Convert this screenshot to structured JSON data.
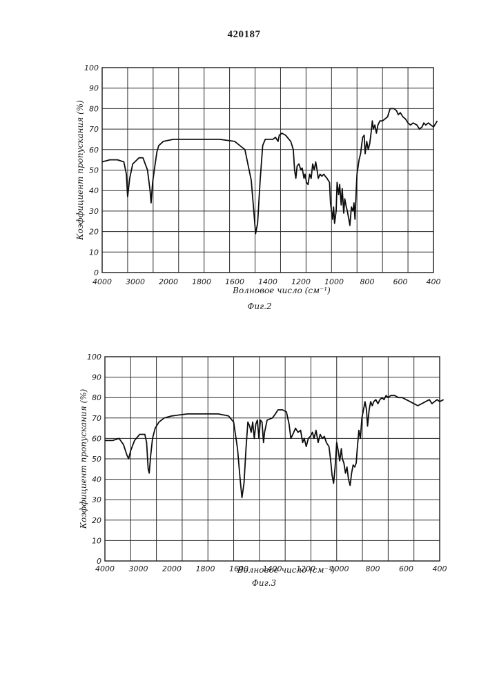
{
  "page_number": "420187",
  "chart_data": [
    {
      "type": "line",
      "caption": "Фиг.2",
      "xlabel": "Волновое число (см⁻¹)",
      "ylabel": "Коэффициент пропускания (%)",
      "ylim": [
        0,
        100
      ],
      "y_ticks": [
        "0",
        "10",
        "20",
        "30",
        "40",
        "50",
        "60",
        "70",
        "80",
        "90",
        "100"
      ],
      "x_ticks": [
        "4000",
        "3000",
        "2000",
        "1800",
        "1600",
        "1400",
        "1200",
        "1000",
        "800",
        "600",
        "400"
      ],
      "grid": true,
      "series": [
        {
          "points": [
            [
              0,
              54
            ],
            [
              0.3,
              55
            ],
            [
              0.6,
              55
            ],
            [
              0.85,
              54
            ],
            [
              0.95,
              48
            ],
            [
              1.0,
              37
            ],
            [
              1.08,
              46
            ],
            [
              1.2,
              53
            ],
            [
              1.45,
              56
            ],
            [
              1.6,
              56
            ],
            [
              1.78,
              50
            ],
            [
              1.88,
              40
            ],
            [
              1.92,
              34
            ],
            [
              1.98,
              44
            ],
            [
              2.08,
              53
            ],
            [
              2.15,
              59
            ],
            [
              2.22,
              62
            ],
            [
              2.4,
              64
            ],
            [
              2.8,
              65
            ],
            [
              3.5,
              65
            ],
            [
              4.6,
              65
            ],
            [
              5.2,
              64
            ],
            [
              5.6,
              60
            ],
            [
              5.85,
              45
            ],
            [
              5.95,
              30
            ],
            [
              6.02,
              19
            ],
            [
              6.1,
              24
            ],
            [
              6.2,
              45
            ],
            [
              6.3,
              62
            ],
            [
              6.4,
              65
            ],
            [
              6.7,
              65
            ],
            [
              6.8,
              66
            ],
            [
              6.9,
              64
            ],
            [
              6.95,
              67
            ],
            [
              7.05,
              68
            ],
            [
              7.2,
              67
            ],
            [
              7.4,
              64
            ],
            [
              7.5,
              60
            ],
            [
              7.55,
              50
            ],
            [
              7.6,
              46
            ],
            [
              7.65,
              52
            ],
            [
              7.72,
              53
            ],
            [
              7.8,
              50
            ],
            [
              7.85,
              51
            ],
            [
              7.92,
              46
            ],
            [
              7.96,
              48
            ],
            [
              8.02,
              44
            ],
            [
              8.08,
              43
            ],
            [
              8.14,
              48
            ],
            [
              8.2,
              46
            ],
            [
              8.26,
              53
            ],
            [
              8.32,
              50
            ],
            [
              8.38,
              54
            ],
            [
              8.42,
              51
            ],
            [
              8.48,
              46
            ],
            [
              8.55,
              48
            ],
            [
              8.62,
              47
            ],
            [
              8.7,
              48
            ],
            [
              8.75,
              47
            ],
            [
              8.82,
              46
            ],
            [
              8.92,
              44
            ],
            [
              8.96,
              34
            ],
            [
              9.0,
              30
            ],
            [
              9.04,
              26
            ],
            [
              9.08,
              32
            ],
            [
              9.12,
              24
            ],
            [
              9.18,
              30
            ],
            [
              9.22,
              44
            ],
            [
              9.28,
              38
            ],
            [
              9.32,
              43
            ],
            [
              9.38,
              33
            ],
            [
              9.42,
              41
            ],
            [
              9.48,
              29
            ],
            [
              9.52,
              36
            ],
            [
              9.58,
              32
            ],
            [
              9.62,
              30
            ],
            [
              9.68,
              26
            ],
            [
              9.72,
              23
            ],
            [
              9.78,
              32
            ],
            [
              9.84,
              30
            ],
            [
              9.88,
              34
            ],
            [
              9.92,
              26
            ],
            [
              9.96,
              38
            ],
            [
              10.0,
              48
            ],
            [
              10.08,
              55
            ],
            [
              10.14,
              58
            ],
            [
              10.22,
              66
            ],
            [
              10.28,
              67
            ],
            [
              10.32,
              58
            ],
            [
              10.38,
              64
            ],
            [
              10.44,
              60
            ],
            [
              10.5,
              63
            ],
            [
              10.56,
              69
            ],
            [
              10.6,
              74
            ],
            [
              10.64,
              70
            ],
            [
              10.7,
              72
            ],
            [
              10.76,
              68
            ],
            [
              10.82,
              72
            ],
            [
              10.9,
              74
            ],
            [
              11.0,
              74
            ],
            [
              11.1,
              75
            ],
            [
              11.2,
              76
            ],
            [
              11.3,
              80
            ],
            [
              11.45,
              80
            ],
            [
              11.55,
              79
            ],
            [
              11.62,
              77
            ],
            [
              11.7,
              78
            ],
            [
              11.8,
              76
            ],
            [
              11.9,
              75
            ],
            [
              12.0,
              73
            ],
            [
              12.1,
              72
            ],
            [
              12.2,
              73
            ],
            [
              12.35,
              72
            ],
            [
              12.45,
              70
            ],
            [
              12.55,
              71
            ],
            [
              12.62,
              73
            ],
            [
              12.7,
              72
            ],
            [
              12.8,
              73
            ],
            [
              12.9,
              72
            ],
            [
              13.0,
              71
            ],
            [
              13.1,
              73
            ],
            [
              13.15,
              74
            ]
          ]
        }
      ]
    },
    {
      "type": "line",
      "caption": "Фиг.3",
      "xlabel": "Волновое число (см⁻¹)",
      "ylabel": "Коэффициент пропускания (%)",
      "ylim": [
        0,
        100
      ],
      "y_ticks": [
        "0",
        "10",
        "20",
        "30",
        "40",
        "50",
        "60",
        "70",
        "80",
        "90",
        "100"
      ],
      "x_ticks": [
        "4000",
        "3000",
        "2000",
        "1800",
        "1600",
        "1400",
        "1200",
        "1000",
        "800",
        "600",
        "400"
      ],
      "grid": true,
      "series": [
        {
          "points": [
            [
              0,
              59
            ],
            [
              0.3,
              59
            ],
            [
              0.55,
              60
            ],
            [
              0.72,
              57
            ],
            [
              0.85,
              52
            ],
            [
              0.92,
              50
            ],
            [
              1.0,
              54
            ],
            [
              1.15,
              59
            ],
            [
              1.35,
              62
            ],
            [
              1.55,
              62
            ],
            [
              1.62,
              58
            ],
            [
              1.68,
              45
            ],
            [
              1.72,
              43
            ],
            [
              1.78,
              52
            ],
            [
              1.85,
              60
            ],
            [
              1.95,
              65
            ],
            [
              2.1,
              68
            ],
            [
              2.3,
              70
            ],
            [
              2.6,
              71
            ],
            [
              3.2,
              72
            ],
            [
              4.4,
              72
            ],
            [
              4.8,
              71
            ],
            [
              5.0,
              68
            ],
            [
              5.15,
              55
            ],
            [
              5.25,
              40
            ],
            [
              5.32,
              31
            ],
            [
              5.4,
              38
            ],
            [
              5.48,
              55
            ],
            [
              5.55,
              68
            ],
            [
              5.62,
              66
            ],
            [
              5.68,
              63
            ],
            [
              5.74,
              68
            ],
            [
              5.8,
              60
            ],
            [
              5.86,
              67
            ],
            [
              5.92,
              69
            ],
            [
              5.98,
              60
            ],
            [
              6.04,
              69
            ],
            [
              6.1,
              68
            ],
            [
              6.16,
              58
            ],
            [
              6.2,
              63
            ],
            [
              6.3,
              69
            ],
            [
              6.5,
              70
            ],
            [
              6.62,
              72
            ],
            [
              6.72,
              74
            ],
            [
              6.9,
              74
            ],
            [
              7.05,
              73
            ],
            [
              7.15,
              67
            ],
            [
              7.22,
              60
            ],
            [
              7.3,
              62
            ],
            [
              7.4,
              65
            ],
            [
              7.5,
              63
            ],
            [
              7.6,
              64
            ],
            [
              7.68,
              58
            ],
            [
              7.74,
              60
            ],
            [
              7.82,
              56
            ],
            [
              7.9,
              60
            ],
            [
              7.98,
              61
            ],
            [
              8.06,
              63
            ],
            [
              8.12,
              60
            ],
            [
              8.2,
              64
            ],
            [
              8.28,
              58
            ],
            [
              8.36,
              62
            ],
            [
              8.44,
              60
            ],
            [
              8.52,
              61
            ],
            [
              8.6,
              58
            ],
            [
              8.7,
              56
            ],
            [
              8.76,
              50
            ],
            [
              8.82,
              42
            ],
            [
              8.88,
              38
            ],
            [
              8.94,
              46
            ],
            [
              9.0,
              58
            ],
            [
              9.06,
              54
            ],
            [
              9.12,
              49
            ],
            [
              9.18,
              55
            ],
            [
              9.22,
              50
            ],
            [
              9.28,
              48
            ],
            [
              9.34,
              43
            ],
            [
              9.4,
              46
            ],
            [
              9.46,
              40
            ],
            [
              9.52,
              37
            ],
            [
              9.58,
              43
            ],
            [
              9.64,
              47
            ],
            [
              9.7,
              46
            ],
            [
              9.76,
              48
            ],
            [
              9.8,
              55
            ],
            [
              9.86,
              64
            ],
            [
              9.92,
              60
            ],
            [
              9.98,
              70
            ],
            [
              10.04,
              74
            ],
            [
              10.1,
              78
            ],
            [
              10.16,
              74
            ],
            [
              10.2,
              66
            ],
            [
              10.26,
              74
            ],
            [
              10.32,
              78
            ],
            [
              10.38,
              76
            ],
            [
              10.44,
              78
            ],
            [
              10.52,
              79
            ],
            [
              10.6,
              77
            ],
            [
              10.68,
              79
            ],
            [
              10.76,
              80
            ],
            [
              10.84,
              79
            ],
            [
              10.92,
              81
            ],
            [
              11.0,
              80
            ],
            [
              11.1,
              81
            ],
            [
              11.25,
              81
            ],
            [
              11.4,
              80
            ],
            [
              11.55,
              80
            ],
            [
              11.7,
              79
            ],
            [
              11.85,
              78
            ],
            [
              12.0,
              77
            ],
            [
              12.15,
              76
            ],
            [
              12.3,
              77
            ],
            [
              12.45,
              78
            ],
            [
              12.6,
              79
            ],
            [
              12.7,
              77
            ],
            [
              12.8,
              78
            ],
            [
              12.9,
              79
            ],
            [
              13.0,
              78
            ],
            [
              13.15,
              79
            ]
          ]
        }
      ]
    }
  ]
}
